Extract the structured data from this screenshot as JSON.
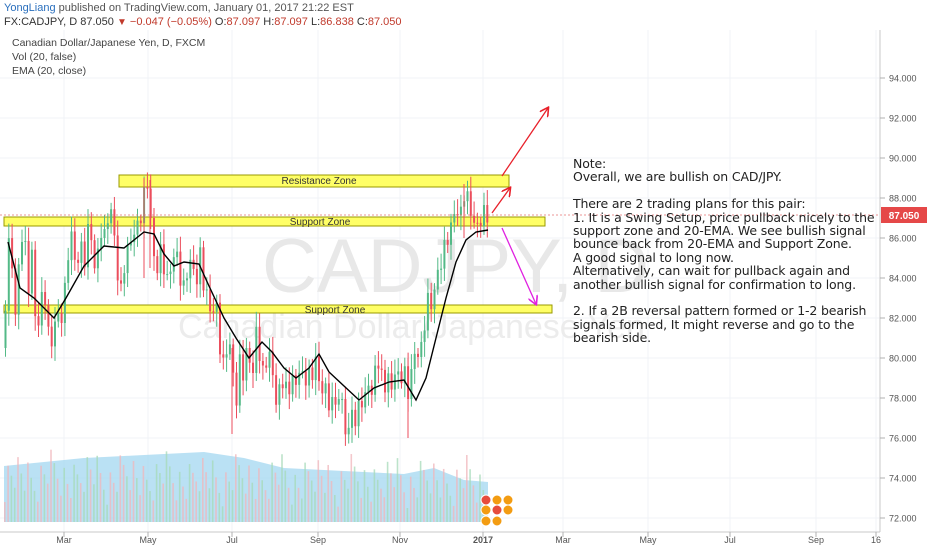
{
  "header": {
    "author": "YongLiang",
    "published": "published on TradingView.com, January 01, 2017 21:22 EST",
    "symbol": "FX:CADJPY, D",
    "last": "87.050",
    "change_arrow": "▼",
    "change": "−0.047 (−0.05%)",
    "o_label": "O:",
    "o": "87.097",
    "h_label": "H:",
    "h": "87.097",
    "l_label": "L:",
    "l": "86.838",
    "c_label": "C:",
    "c": "87.050"
  },
  "legend": {
    "title": "Canadian Dollar/Japanese Yen, D, FXCM",
    "vol": "Vol (20, false)",
    "ema": "EMA (20, close)"
  },
  "watermark": {
    "big": "CADJPY, D",
    "small": "Canadian Dollar/Japanese Yen"
  },
  "zones": {
    "resistance": "Resistance Zone",
    "support_upper": "Support Zone",
    "support_lower": "Support Zone"
  },
  "price_label": "87.050",
  "note": "Note:\nOverall, we are bullish on CAD/JPY.\n\nThere are 2 trading plans for this pair:\n1. It is a Swing Setup, price pullback nicely to the support zone and 20-EMA. We see bullish signal bounce back from 20-EMA and Support Zone.\nA good signal to long now.\nAlternatively, can wait for pullback again and another bullish signal for confirmation to long.\n\n2. If a 2B reversal pattern formed or 1-2 bearish signals formed, It might reverse and go to the bearish side.",
  "colors": {
    "up": "#53b987",
    "down": "#eb4d5c",
    "ema": "#000000",
    "zone_fill": "#ffff66",
    "zone_stroke": "#999900",
    "volume": "#9cd4f0",
    "arrow_up": "#e8202a",
    "arrow_down": "#e020e0"
  },
  "chart_data": {
    "type": "candlestick",
    "title": "Canadian Dollar/Japanese Yen, D, FXCM",
    "x_ticks": [
      "Mar",
      "May",
      "Jul",
      "Sep",
      "Nov",
      "2017",
      "Mar",
      "May",
      "Jul",
      "Sep",
      "16"
    ],
    "y_ticks": [
      "72.000",
      "74.000",
      "76.000",
      "78.000",
      "80.000",
      "82.000",
      "84.000",
      "86.000",
      "88.000",
      "90.000",
      "92.000",
      "94.000"
    ],
    "ylim": [
      71.4,
      96.4
    ],
    "path": [
      [
        0,
        80.5
      ],
      [
        4,
        86.2
      ],
      [
        8,
        84.5
      ],
      [
        12,
        82.0
      ],
      [
        16,
        85.5
      ],
      [
        20,
        86.8
      ],
      [
        24,
        83.0
      ],
      [
        28,
        85.5
      ],
      [
        32,
        81.0
      ],
      [
        36,
        82.5
      ],
      [
        40,
        83.5
      ],
      [
        44,
        81.5
      ],
      [
        48,
        80.5
      ],
      [
        52,
        82.5
      ],
      [
        56,
        81.5
      ],
      [
        60,
        83.0
      ],
      [
        64,
        85.0
      ],
      [
        68,
        86.5
      ],
      [
        72,
        84.0
      ],
      [
        76,
        86.0
      ],
      [
        80,
        84.5
      ],
      [
        84,
        86.5
      ],
      [
        88,
        85.8
      ],
      [
        92,
        84.0
      ],
      [
        96,
        86.5
      ],
      [
        100,
        86.0
      ],
      [
        104,
        87.0
      ],
      [
        108,
        87.5
      ],
      [
        112,
        85.0
      ],
      [
        116,
        83.0
      ],
      [
        120,
        84.5
      ],
      [
        124,
        85.5
      ],
      [
        128,
        86.0
      ],
      [
        132,
        86.5
      ],
      [
        136,
        86.8
      ],
      [
        140,
        88.2
      ],
      [
        144,
        88.8
      ],
      [
        148,
        86.0
      ],
      [
        152,
        84.0
      ],
      [
        156,
        85.5
      ],
      [
        160,
        84.5
      ],
      [
        164,
        83.8
      ],
      [
        168,
        84.8
      ],
      [
        172,
        85.5
      ],
      [
        176,
        84.0
      ],
      [
        180,
        83.5
      ],
      [
        184,
        84.5
      ],
      [
        188,
        85.0
      ],
      [
        192,
        83.5
      ],
      [
        196,
        85.3
      ],
      [
        200,
        83.5
      ],
      [
        204,
        83.0
      ],
      [
        208,
        82.0
      ],
      [
        212,
        83.0
      ],
      [
        216,
        80.5
      ],
      [
        220,
        79.5
      ],
      [
        224,
        81.0
      ],
      [
        228,
        80.0
      ],
      [
        232,
        77.5
      ],
      [
        236,
        80.0
      ],
      [
        240,
        79.0
      ],
      [
        244,
        81.0
      ],
      [
        248,
        78.5
      ],
      [
        252,
        81.5
      ],
      [
        256,
        80.0
      ],
      [
        260,
        79.0
      ],
      [
        264,
        80.5
      ],
      [
        268,
        79.5
      ],
      [
        272,
        77.8
      ],
      [
        276,
        78.5
      ],
      [
        280,
        79.0
      ],
      [
        284,
        78.0
      ],
      [
        288,
        79.2
      ],
      [
        292,
        78.5
      ],
      [
        296,
        79.8
      ],
      [
        300,
        78.5
      ],
      [
        304,
        79.5
      ],
      [
        308,
        78.8
      ],
      [
        312,
        80.3
      ],
      [
        316,
        78.0
      ],
      [
        320,
        79.0
      ],
      [
        324,
        77.5
      ],
      [
        328,
        78.0
      ],
      [
        332,
        77.5
      ],
      [
        336,
        78.5
      ],
      [
        340,
        76.8
      ],
      [
        344,
        76.0
      ],
      [
        348,
        77.5
      ],
      [
        352,
        76.5
      ],
      [
        356,
        78.2
      ],
      [
        360,
        77.5
      ],
      [
        364,
        79.0
      ],
      [
        368,
        78.0
      ],
      [
        372,
        80.0
      ],
      [
        376,
        79.5
      ],
      [
        380,
        78.5
      ],
      [
        384,
        79.0
      ],
      [
        388,
        78.5
      ],
      [
        392,
        79.5
      ],
      [
        396,
        78.8
      ],
      [
        400,
        79.5
      ],
      [
        404,
        78.2
      ],
      [
        408,
        79.5
      ],
      [
        412,
        80.5
      ],
      [
        416,
        80.0
      ],
      [
        420,
        81.5
      ],
      [
        424,
        83.0
      ],
      [
        428,
        82.5
      ],
      [
        432,
        84.0
      ],
      [
        436,
        84.5
      ],
      [
        440,
        85.5
      ],
      [
        444,
        86.0
      ],
      [
        448,
        86.8
      ],
      [
        452,
        87.5
      ],
      [
        456,
        87.0
      ],
      [
        460,
        88.2
      ],
      [
        464,
        88.0
      ],
      [
        468,
        87.0
      ],
      [
        472,
        86.5
      ],
      [
        476,
        86.8
      ],
      [
        480,
        87.3
      ],
      [
        484,
        87.05
      ]
    ],
    "ema": [
      [
        4,
        85.8
      ],
      [
        16,
        83.5
      ],
      [
        30,
        83.0
      ],
      [
        50,
        82.0
      ],
      [
        62,
        83.0
      ],
      [
        80,
        84.6
      ],
      [
        100,
        85.6
      ],
      [
        120,
        85.5
      ],
      [
        140,
        86.3
      ],
      [
        150,
        86.2
      ],
      [
        160,
        85.2
      ],
      [
        170,
        84.6
      ],
      [
        180,
        84.8
      ],
      [
        195,
        84.7
      ],
      [
        205,
        83.6
      ],
      [
        220,
        82.0
      ],
      [
        232,
        81.0
      ],
      [
        245,
        80.0
      ],
      [
        258,
        80.8
      ],
      [
        268,
        80.3
      ],
      [
        280,
        79.5
      ],
      [
        292,
        79.0
      ],
      [
        305,
        79.5
      ],
      [
        315,
        80.2
      ],
      [
        325,
        79.3
      ],
      [
        340,
        78.6
      ],
      [
        355,
        77.9
      ],
      [
        370,
        78.5
      ],
      [
        385,
        78.8
      ],
      [
        400,
        78.9
      ],
      [
        412,
        77.9
      ],
      [
        422,
        79.0
      ],
      [
        432,
        81.0
      ],
      [
        442,
        83.0
      ],
      [
        452,
        84.8
      ],
      [
        462,
        85.9
      ],
      [
        472,
        86.3
      ],
      [
        484,
        86.4
      ]
    ],
    "volume_profile": [
      [
        0,
        74.6
      ],
      [
        40,
        74.8
      ],
      [
        80,
        75.0
      ],
      [
        120,
        75.1
      ],
      [
        160,
        75.2
      ],
      [
        200,
        75.3
      ],
      [
        240,
        75.0
      ],
      [
        280,
        74.5
      ],
      [
        320,
        74.4
      ],
      [
        360,
        74.3
      ],
      [
        400,
        74.2
      ],
      [
        430,
        74.5
      ],
      [
        460,
        73.9
      ],
      [
        484,
        73.8
      ]
    ]
  }
}
